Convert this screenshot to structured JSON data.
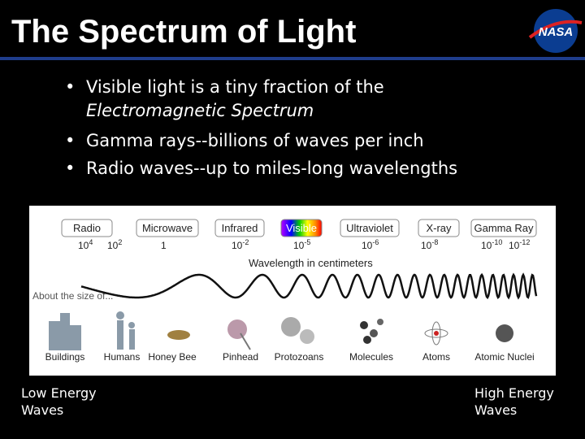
{
  "header": {
    "title": "The Spectrum of Light",
    "logo": "NASA"
  },
  "bullets": [
    {
      "text": "Visible light is a tiny fraction of the",
      "emphasis": "Electromagnetic Spectrum"
    },
    {
      "text": "Gamma rays--billions of waves per inch"
    },
    {
      "text": "Radio waves--up to miles-long wavelengths"
    }
  ],
  "figure": {
    "bands": [
      "Radio",
      "Microwave",
      "Infrared",
      "Visible",
      "Ultraviolet",
      "X-ray",
      "Gamma Ray"
    ],
    "wavelengths": [
      {
        "base": "10",
        "exp": "4"
      },
      {
        "base": "10",
        "exp": "2"
      },
      {
        "base": "1"
      },
      {
        "base": "10",
        "exp": "-2"
      },
      {
        "base": "10",
        "exp": "-5"
      },
      {
        "base": "10",
        "exp": "-6"
      },
      {
        "base": "10",
        "exp": "-8"
      },
      {
        "base": "10",
        "exp": "-10"
      },
      {
        "base": "10",
        "exp": "-12"
      }
    ],
    "axis_label": "Wavelength in centimeters",
    "size_label": "About the size of...",
    "sizes": [
      "Buildings",
      "Humans",
      "Honey Bee",
      "Pinhead",
      "Protozoans",
      "Molecules",
      "Atoms",
      "Atomic Nuclei"
    ]
  },
  "footer": {
    "left": [
      "Low Energy",
      "Waves"
    ],
    "right": [
      "High Energy",
      "Waves"
    ]
  }
}
